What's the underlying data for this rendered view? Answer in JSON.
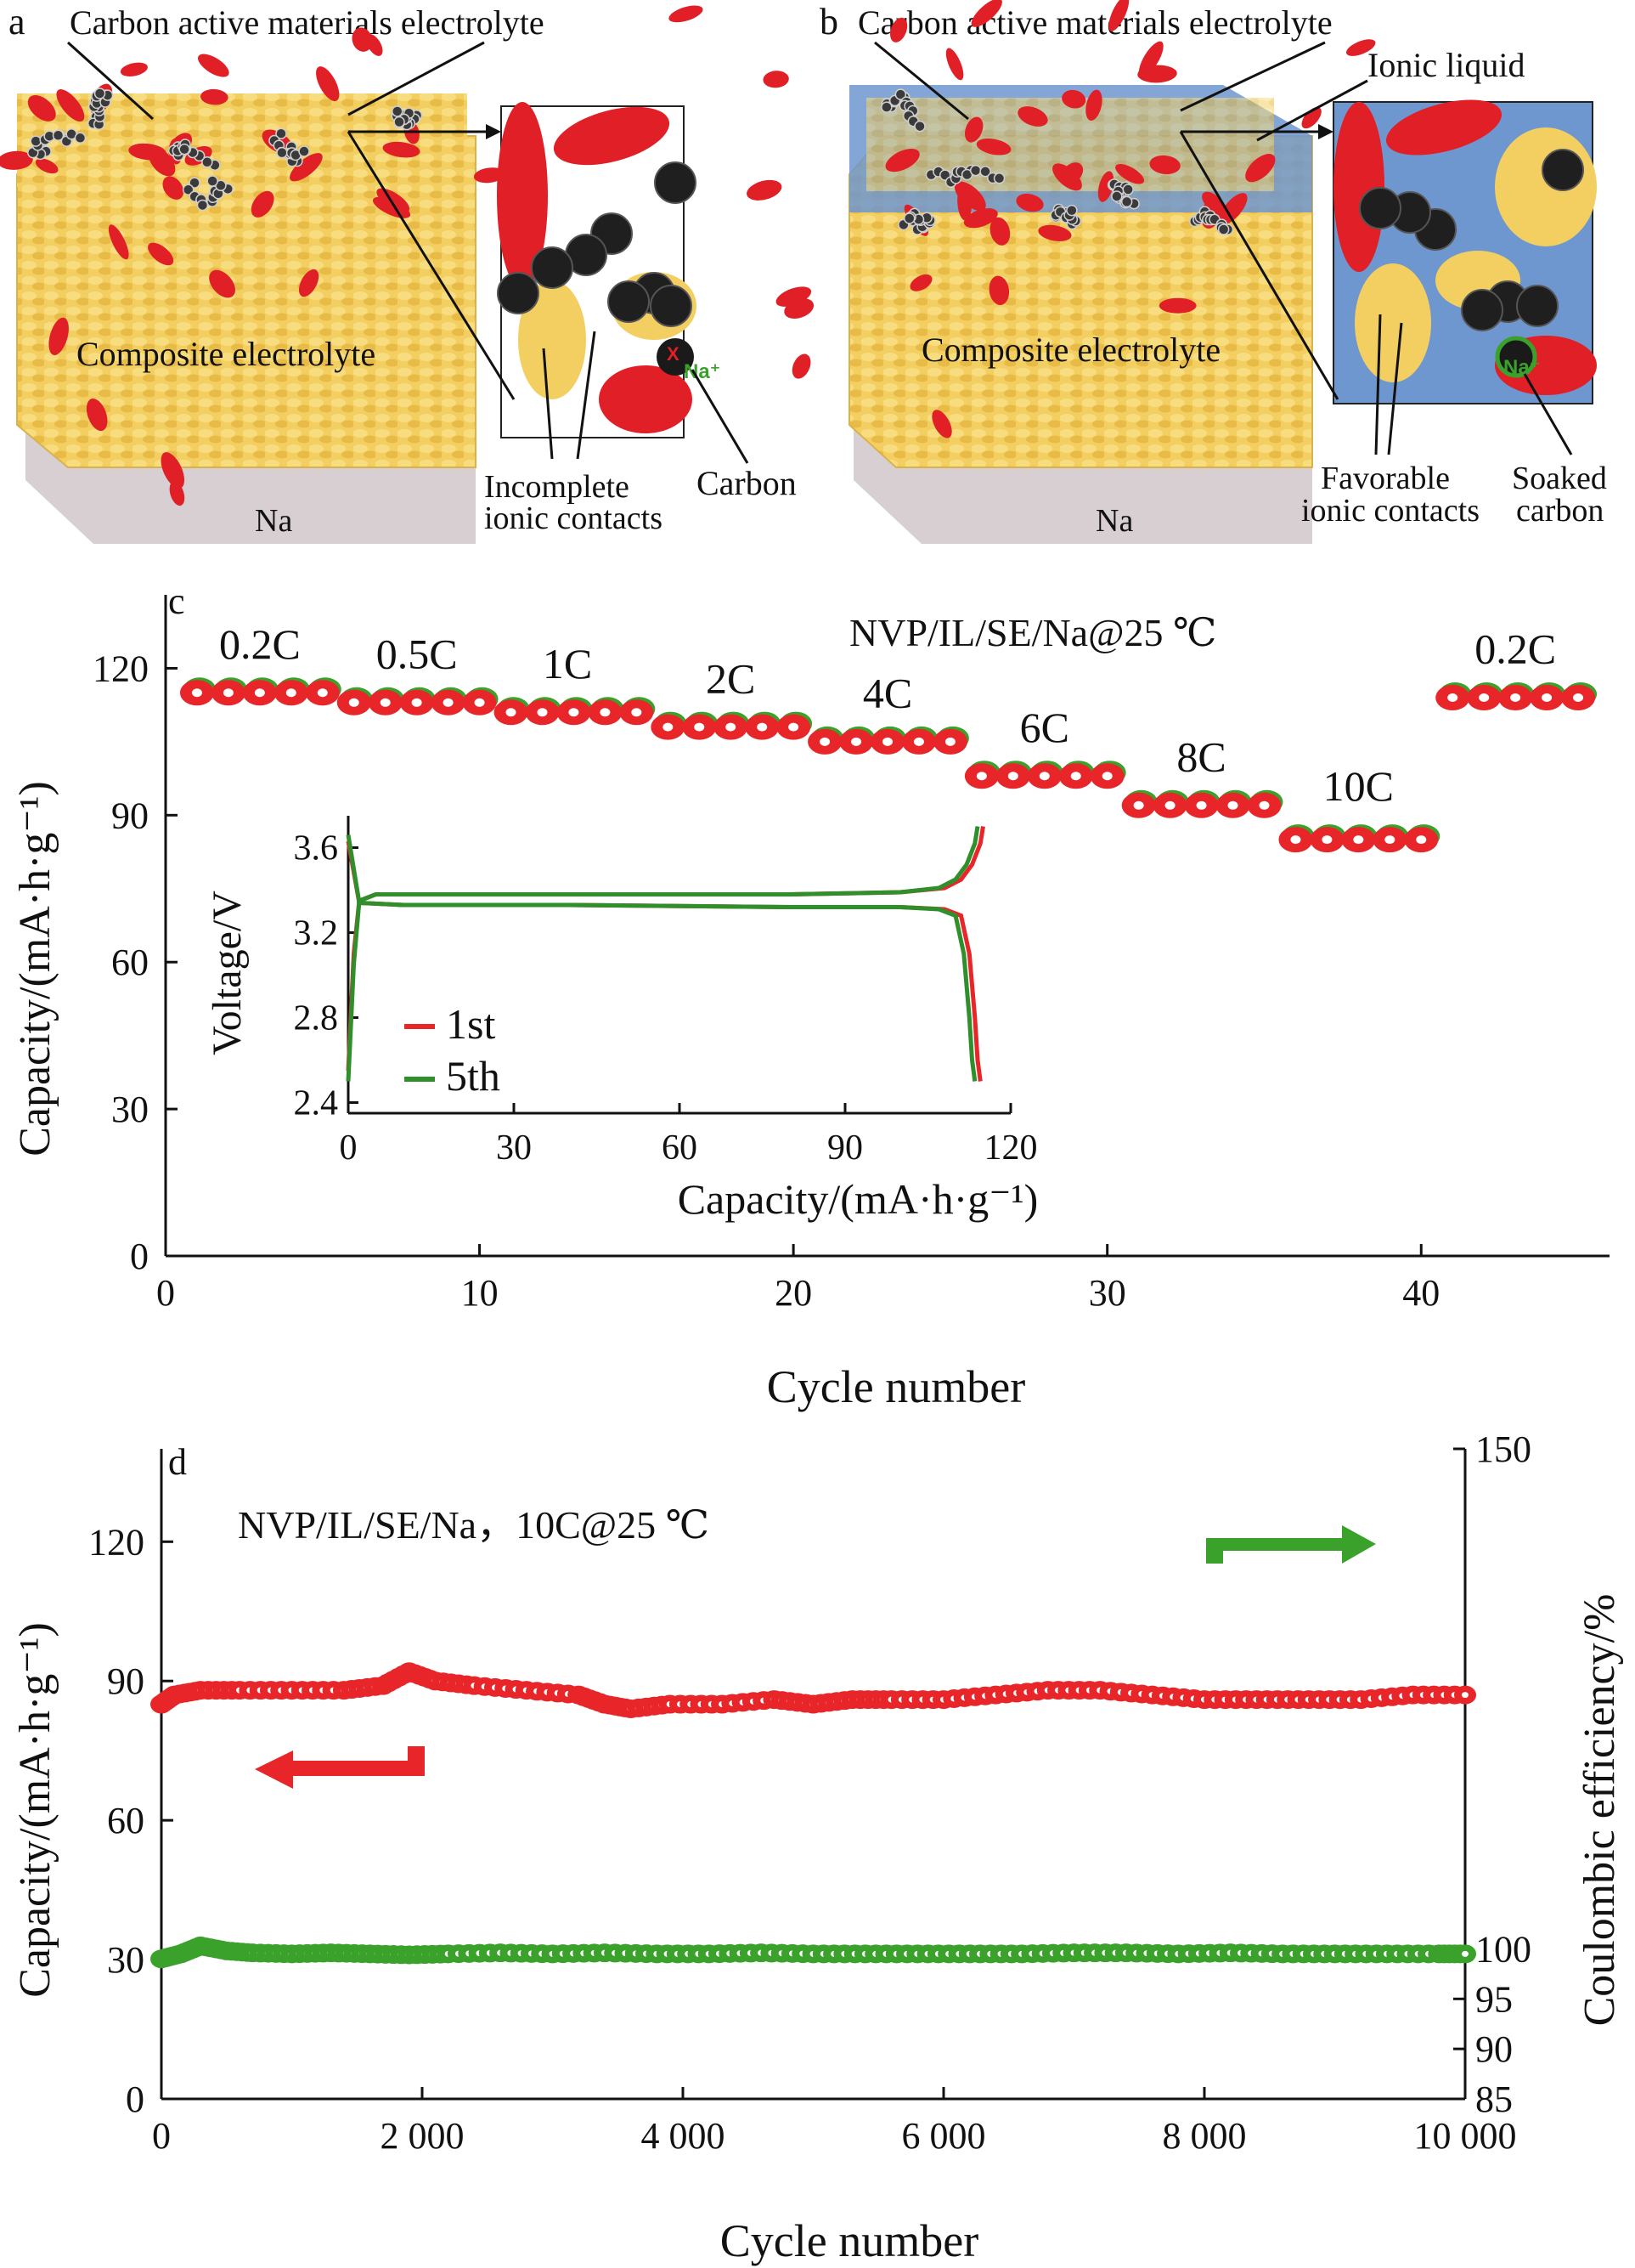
{
  "panel_a": {
    "letter": "a",
    "top_label": "Carbon active materials electrolyte",
    "block_label": "Composite electrolyte",
    "base_label": "Na",
    "note_left_1": "Incomplete",
    "note_left_2": "ionic contacts",
    "note_right": "Carbon",
    "ion": "Na⁺",
    "x_mark": "X"
  },
  "panel_b": {
    "letter": "b",
    "top_label": "Carbon active materials electrolyte",
    "ionic_liquid": "Ionic liquid",
    "block_label": "Composite electrolyte",
    "base_label": "Na",
    "note_left_1": "Favorable",
    "note_left_2": "ionic contacts",
    "note_right_1": "Soaked",
    "note_right_2": "carbon",
    "ion": "Na⁺"
  },
  "colors": {
    "charge_red": "#e8262a",
    "efficiency_green": "#3aa12b",
    "electrolyte_gold": "#f3cf62",
    "ionic_liquid_blue": "#6f97cf",
    "sodium_grey": "#cfc6c8"
  },
  "chart_data": [
    {
      "id": "c",
      "type": "scatter",
      "letter": "c",
      "annotation": "NVP/IL/SE/Na@25 ℃",
      "xlabel": "Cycle number",
      "ylabel": "Capacity/(mA·h·g⁻¹)",
      "xlim": [
        0,
        46
      ],
      "ylim": [
        0,
        135
      ],
      "xticks": [
        0,
        10,
        20,
        30,
        40
      ],
      "yticks": [
        0,
        30,
        60,
        90,
        120
      ],
      "rate_labels": [
        {
          "text": "0.2C",
          "x": 3,
          "y": 122
        },
        {
          "text": "0.5C",
          "x": 8,
          "y": 120
        },
        {
          "text": "1C",
          "x": 12.8,
          "y": 118
        },
        {
          "text": "2C",
          "x": 18,
          "y": 115
        },
        {
          "text": "4C",
          "x": 23,
          "y": 112
        },
        {
          "text": "6C",
          "x": 28,
          "y": 105
        },
        {
          "text": "8C",
          "x": 33,
          "y": 99
        },
        {
          "text": "10C",
          "x": 38,
          "y": 93
        },
        {
          "text": "0.2C",
          "x": 43,
          "y": 121
        }
      ],
      "series": [
        {
          "name": "",
          "color": "#e8262a",
          "x": [
            1,
            2,
            3,
            4,
            5,
            6,
            7,
            8,
            9,
            10,
            11,
            12,
            13,
            14,
            15,
            16,
            17,
            18,
            19,
            20,
            21,
            22,
            23,
            24,
            25,
            26,
            27,
            28,
            29,
            30,
            31,
            32,
            33,
            34,
            35,
            36,
            37,
            38,
            39,
            40,
            41,
            42,
            43,
            44,
            45
          ],
          "y": [
            115,
            115,
            115,
            115,
            115,
            113,
            113,
            113,
            113,
            113,
            111,
            111,
            111,
            111,
            111,
            108,
            108,
            108,
            108,
            108,
            105,
            105,
            105,
            105,
            105,
            98,
            98,
            98,
            98,
            98,
            92,
            92,
            92,
            92,
            92,
            85,
            85,
            85,
            85,
            85,
            114,
            114,
            114,
            114,
            114
          ]
        }
      ],
      "inset": {
        "type": "line",
        "xlabel": "Capacity/(mA·h·g⁻¹)",
        "ylabel": "Voltage/V",
        "xlim": [
          0,
          120
        ],
        "ylim": [
          2.35,
          3.75
        ],
        "xticks": [
          0,
          30,
          60,
          90,
          120
        ],
        "yticks": [
          2.4,
          2.8,
          3.2,
          3.6
        ],
        "series": [
          {
            "name": "1st",
            "color": "#e8262a",
            "charge": {
              "x": [
                0,
                1,
                2,
                5,
                20,
                50,
                80,
                100,
                108,
                111,
                113,
                114.5,
                115
              ],
              "y": [
                2.55,
                3.1,
                3.35,
                3.38,
                3.38,
                3.38,
                3.38,
                3.39,
                3.41,
                3.45,
                3.52,
                3.62,
                3.7
              ]
            },
            "discharge": {
              "x": [
                0,
                2,
                10,
                40,
                80,
                100,
                108,
                111,
                112.5,
                113.5,
                114,
                114.5
              ],
              "y": [
                3.63,
                3.34,
                3.33,
                3.33,
                3.32,
                3.32,
                3.31,
                3.28,
                3.1,
                2.8,
                2.6,
                2.5
              ]
            }
          },
          {
            "name": "5th",
            "color": "#2f8f2a",
            "charge": {
              "x": [
                0,
                1,
                2,
                5,
                20,
                50,
                80,
                100,
                107,
                110,
                112,
                113.5,
                114
              ],
              "y": [
                2.5,
                3.05,
                3.35,
                3.38,
                3.38,
                3.38,
                3.38,
                3.39,
                3.41,
                3.45,
                3.52,
                3.62,
                3.7
              ]
            },
            "discharge": {
              "x": [
                0,
                2,
                10,
                40,
                80,
                100,
                107,
                110,
                111.5,
                112.5,
                113,
                113.5
              ],
              "y": [
                3.66,
                3.34,
                3.33,
                3.33,
                3.32,
                3.32,
                3.31,
                3.28,
                3.1,
                2.8,
                2.6,
                2.5
              ]
            }
          }
        ]
      }
    },
    {
      "id": "d",
      "type": "scatter",
      "letter": "d",
      "annotation": "NVP/IL/SE/Na，10C@25 ℃",
      "xlabel": "Cycle number",
      "ylabel": "Capacity/(mA·h·g⁻¹)",
      "y2label": "Coulombic efficiency/%",
      "xlim": [
        0,
        10000
      ],
      "ylim": [
        0,
        140
      ],
      "y2lim": [
        85,
        150
      ],
      "xticks": [
        0,
        2000,
        4000,
        6000,
        8000,
        10000
      ],
      "xticklabels": [
        "0",
        "2 000",
        "4 000",
        "6 000",
        "8 000",
        "10 000"
      ],
      "yticks": [
        0,
        30,
        60,
        90,
        120
      ],
      "y2ticks": [
        85,
        90,
        95,
        100,
        150
      ],
      "y2ticklabels": [
        "85",
        "90",
        "95",
        "100",
        "150"
      ],
      "series": [
        {
          "name": "",
          "axis": "left",
          "color": "#e8262a",
          "x": [
            0,
            100,
            300,
            600,
            1000,
            1400,
            1700,
            1900,
            2100,
            2400,
            2800,
            3200,
            3400,
            3600,
            3900,
            4300,
            4700,
            5000,
            5300,
            5600,
            6000,
            6400,
            6800,
            7200,
            7600,
            8000,
            8400,
            8800,
            9200,
            9600,
            10000
          ],
          "y": [
            85,
            87,
            88,
            88,
            88,
            88,
            89,
            92,
            90,
            89,
            88,
            87,
            85,
            84,
            85,
            85,
            86,
            85,
            86,
            86,
            86,
            87,
            88,
            88,
            87,
            86,
            86,
            86,
            86,
            87,
            87
          ]
        },
        {
          "name": "",
          "axis": "right",
          "color": "#3aa12b",
          "x": [
            0,
            150,
            300,
            500,
            700,
            1000,
            1300,
            1600,
            1900,
            2200,
            2600,
            3000,
            3400,
            3800,
            4200,
            4600,
            5000,
            5400,
            5800,
            6200,
            6600,
            7000,
            7400,
            7800,
            8200,
            8600,
            9000,
            9400,
            9800,
            10000
          ],
          "y": [
            99,
            99.5,
            100.3,
            99.8,
            99.6,
            99.5,
            99.6,
            99.5,
            99.4,
            99.5,
            99.6,
            99.5,
            99.6,
            99.5,
            99.5,
            99.6,
            99.5,
            99.5,
            99.5,
            99.5,
            99.5,
            99.6,
            99.6,
            99.5,
            99.6,
            99.5,
            99.5,
            99.5,
            99.5,
            99.5
          ]
        }
      ]
    }
  ]
}
